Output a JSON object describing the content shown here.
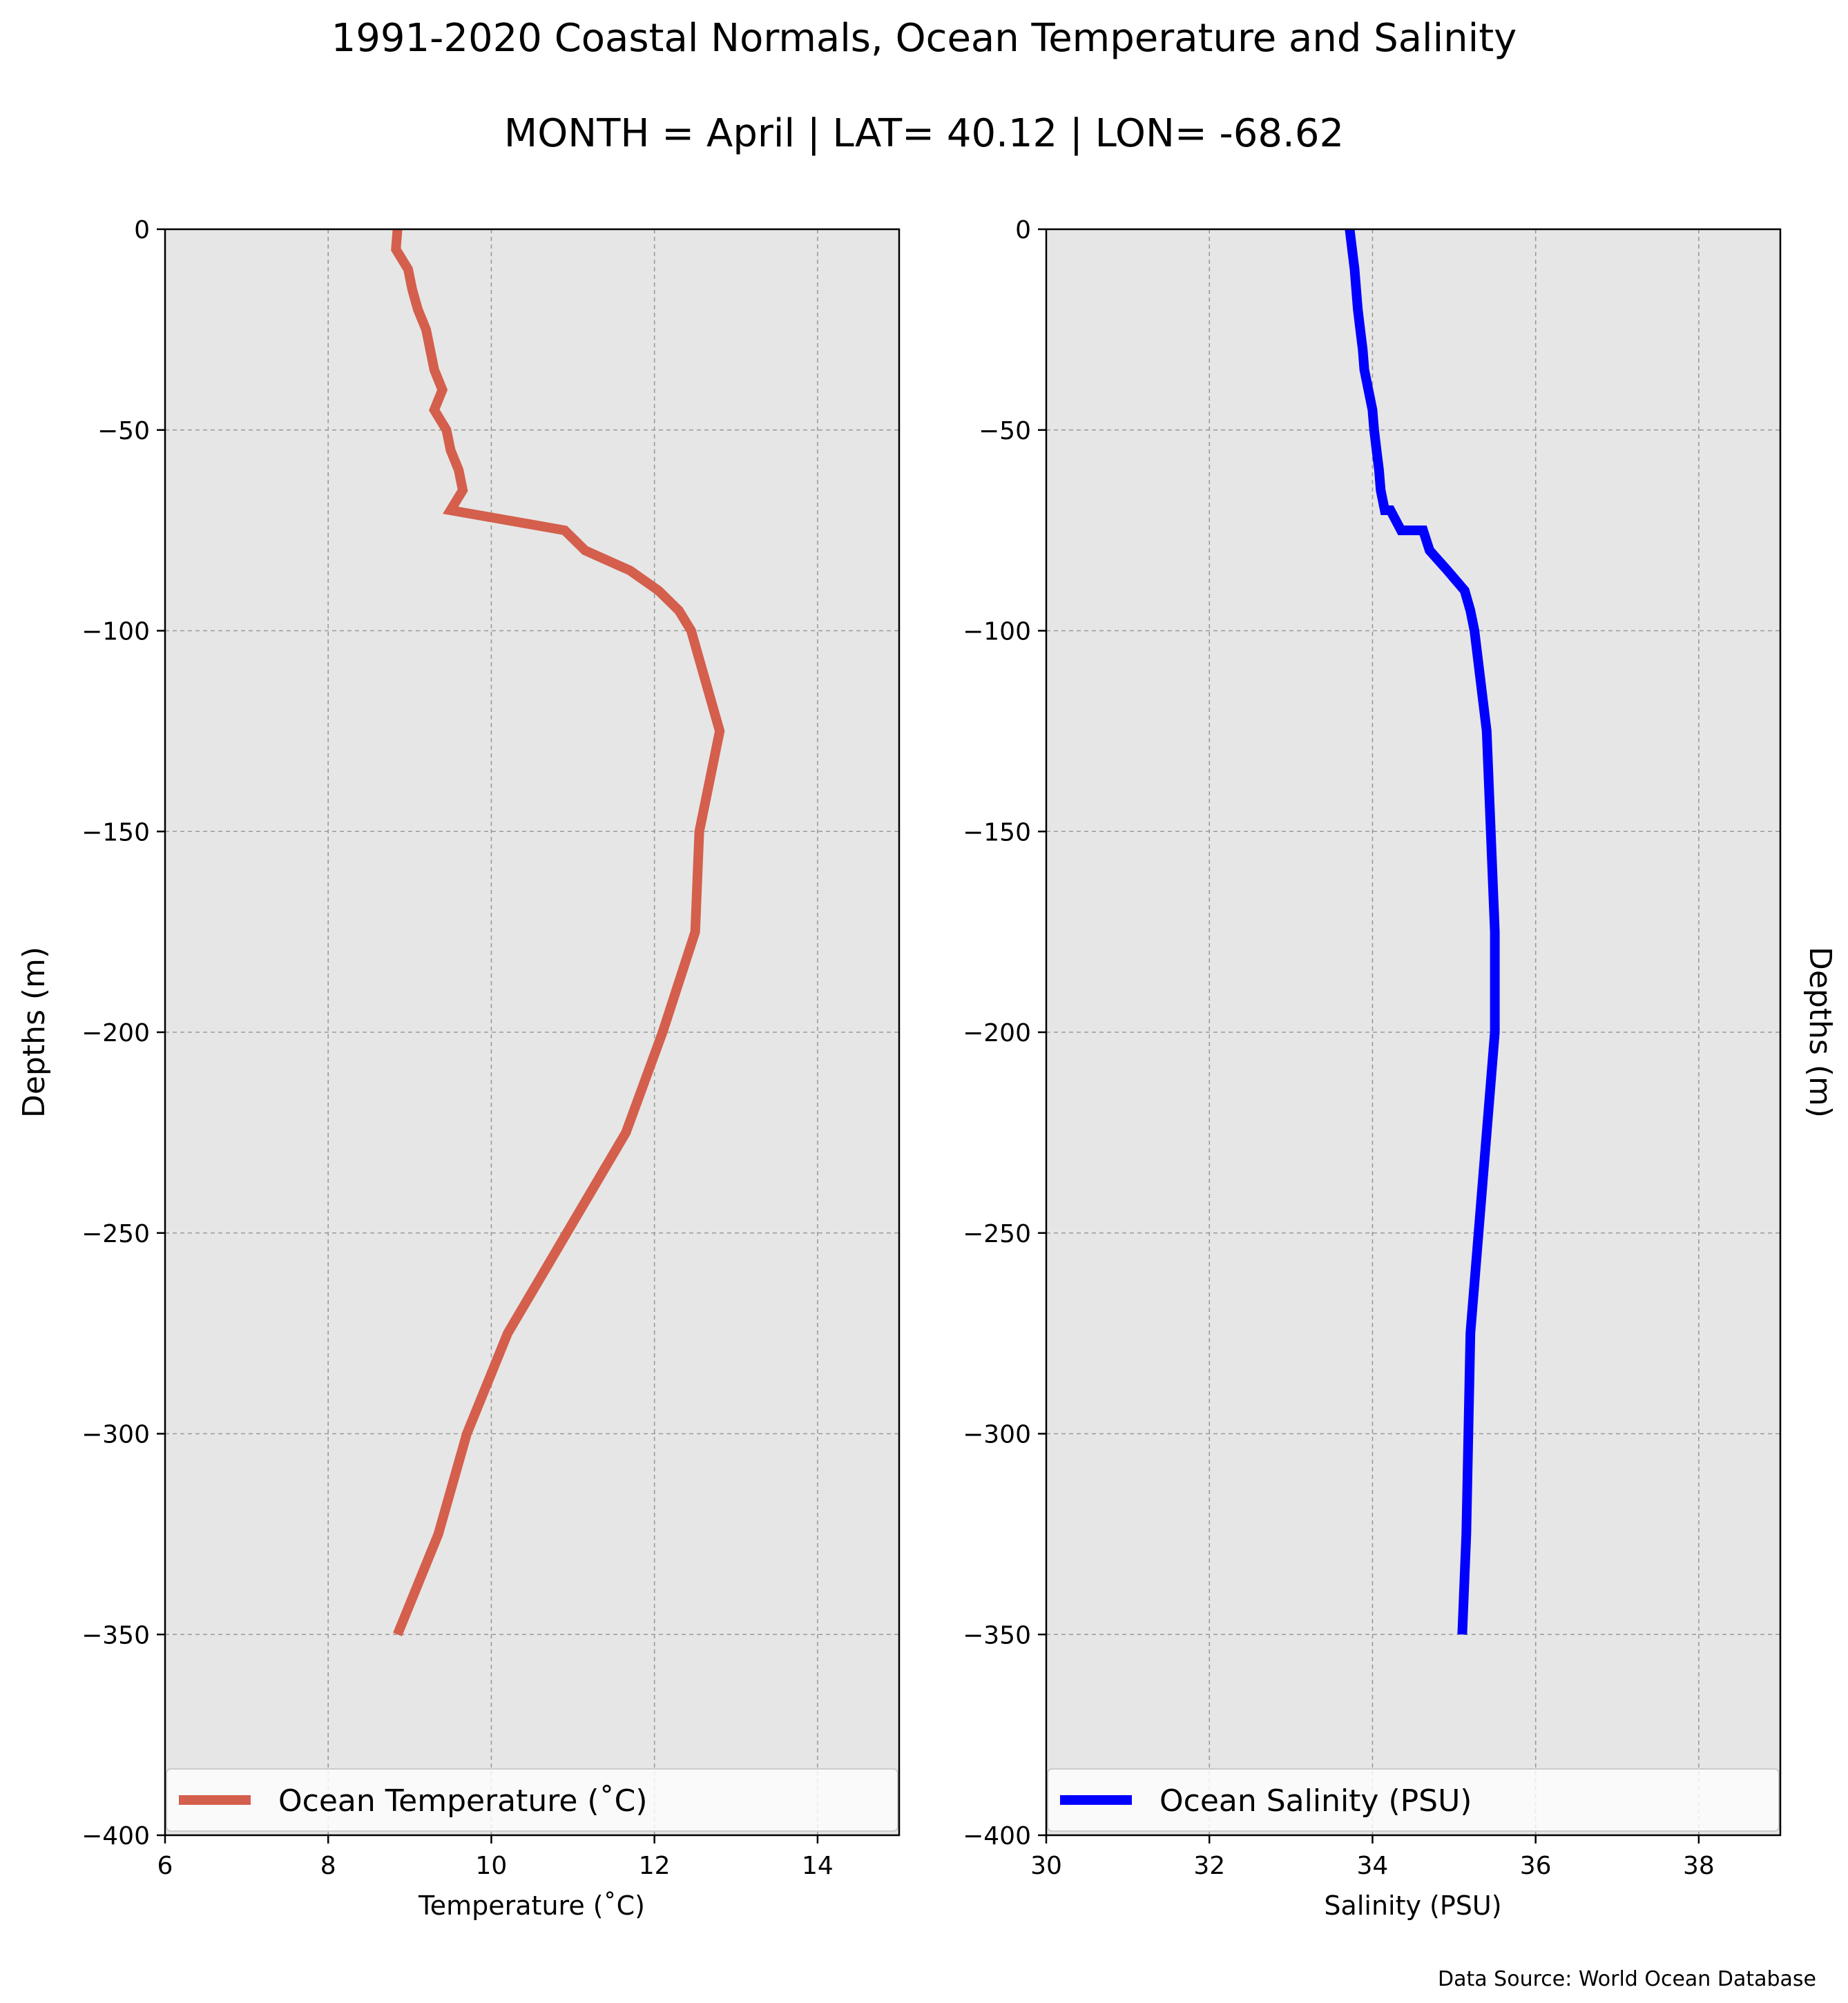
{
  "figure": {
    "title": "1991-2020 Coastal Normals, Ocean Temperature and Salinity",
    "subtitle": "MONTH = April | LAT= 40.12 | LON= -68.62",
    "source": "Data Source: World Ocean Database"
  },
  "colors": {
    "temperature_line": "#d45f4c",
    "salinity_line": "#0000ff",
    "axes_background": "#e6e6e6",
    "grid": "#9a9a9a"
  },
  "chart_data": [
    {
      "type": "line",
      "panel": "left",
      "xlabel": "Temperature ($^\\circ$C)",
      "xlabel_display": "Temperature (˚C)",
      "ylabel": "Depths (m)",
      "xlim": [
        6,
        15
      ],
      "ylim": [
        -400,
        0
      ],
      "xticks": [
        6,
        8,
        10,
        12,
        14
      ],
      "xtick_labels": [
        "6",
        "8",
        "10",
        "12",
        "14"
      ],
      "yticks": [
        0,
        -50,
        -100,
        -150,
        -200,
        -250,
        -300,
        -350,
        -400
      ],
      "ytick_labels": [
        "0",
        "−50",
        "−100",
        "−150",
        "−200",
        "−250",
        "−300",
        "−350",
        "−400"
      ],
      "grid": true,
      "legend_position": "lower-center",
      "series": [
        {
          "name": "Ocean Temperature ($^\\circ$C)",
          "name_display": "Ocean Temperature (˚C)",
          "x": [
            8.85,
            8.83,
            8.98,
            9.03,
            9.1,
            9.2,
            9.25,
            9.3,
            9.4,
            9.3,
            9.45,
            9.5,
            9.6,
            9.65,
            9.5,
            10.9,
            11.15,
            11.7,
            12.05,
            12.3,
            12.45,
            12.8,
            12.55,
            12.5,
            12.1,
            11.65,
            10.2,
            9.7,
            9.35,
            8.85
          ],
          "y": [
            0,
            -5,
            -10,
            -15,
            -20,
            -25,
            -30,
            -35,
            -40,
            -45,
            -50,
            -55,
            -60,
            -65,
            -70,
            -75,
            -80,
            -85,
            -90,
            -95,
            -100,
            -125,
            -150,
            -175,
            -200,
            -225,
            -275,
            -300,
            -325,
            -350
          ]
        }
      ]
    },
    {
      "type": "line",
      "panel": "right",
      "xlabel": "Salinity (PSU)",
      "ylabel": "Depths (m)",
      "xlim": [
        30,
        39
      ],
      "ylim": [
        -400,
        0
      ],
      "xticks": [
        30,
        32,
        34,
        36,
        38
      ],
      "xtick_labels": [
        "30",
        "32",
        "34",
        "36",
        "38"
      ],
      "yticks": [
        0,
        -50,
        -100,
        -150,
        -200,
        -250,
        -300,
        -350,
        -400
      ],
      "ytick_labels": [
        "0",
        "−50",
        "−100",
        "−150",
        "−200",
        "−250",
        "−300",
        "−350",
        "−400"
      ],
      "grid": true,
      "legend_position": "lower-center",
      "series": [
        {
          "name": "Ocean Salinity (PSU)",
          "x": [
            33.72,
            33.75,
            33.78,
            33.8,
            33.82,
            33.85,
            33.88,
            33.9,
            33.95,
            34.0,
            34.02,
            34.05,
            34.08,
            34.1,
            34.15,
            34.22,
            34.35,
            34.62,
            34.7,
            34.92,
            35.13,
            35.2,
            35.25,
            35.4,
            35.45,
            35.5,
            35.5,
            35.4,
            35.3,
            35.2,
            35.15,
            35.1
          ],
          "y": [
            0,
            -5,
            -10,
            -15,
            -20,
            -25,
            -30,
            -35,
            -40,
            -45,
            -50,
            -55,
            -60,
            -65,
            -70,
            -70,
            -75,
            -75,
            -80,
            -85,
            -90,
            -95,
            -100,
            -125,
            -150,
            -175,
            -200,
            -225,
            -250,
            -275,
            -325,
            -350
          ]
        }
      ]
    }
  ]
}
